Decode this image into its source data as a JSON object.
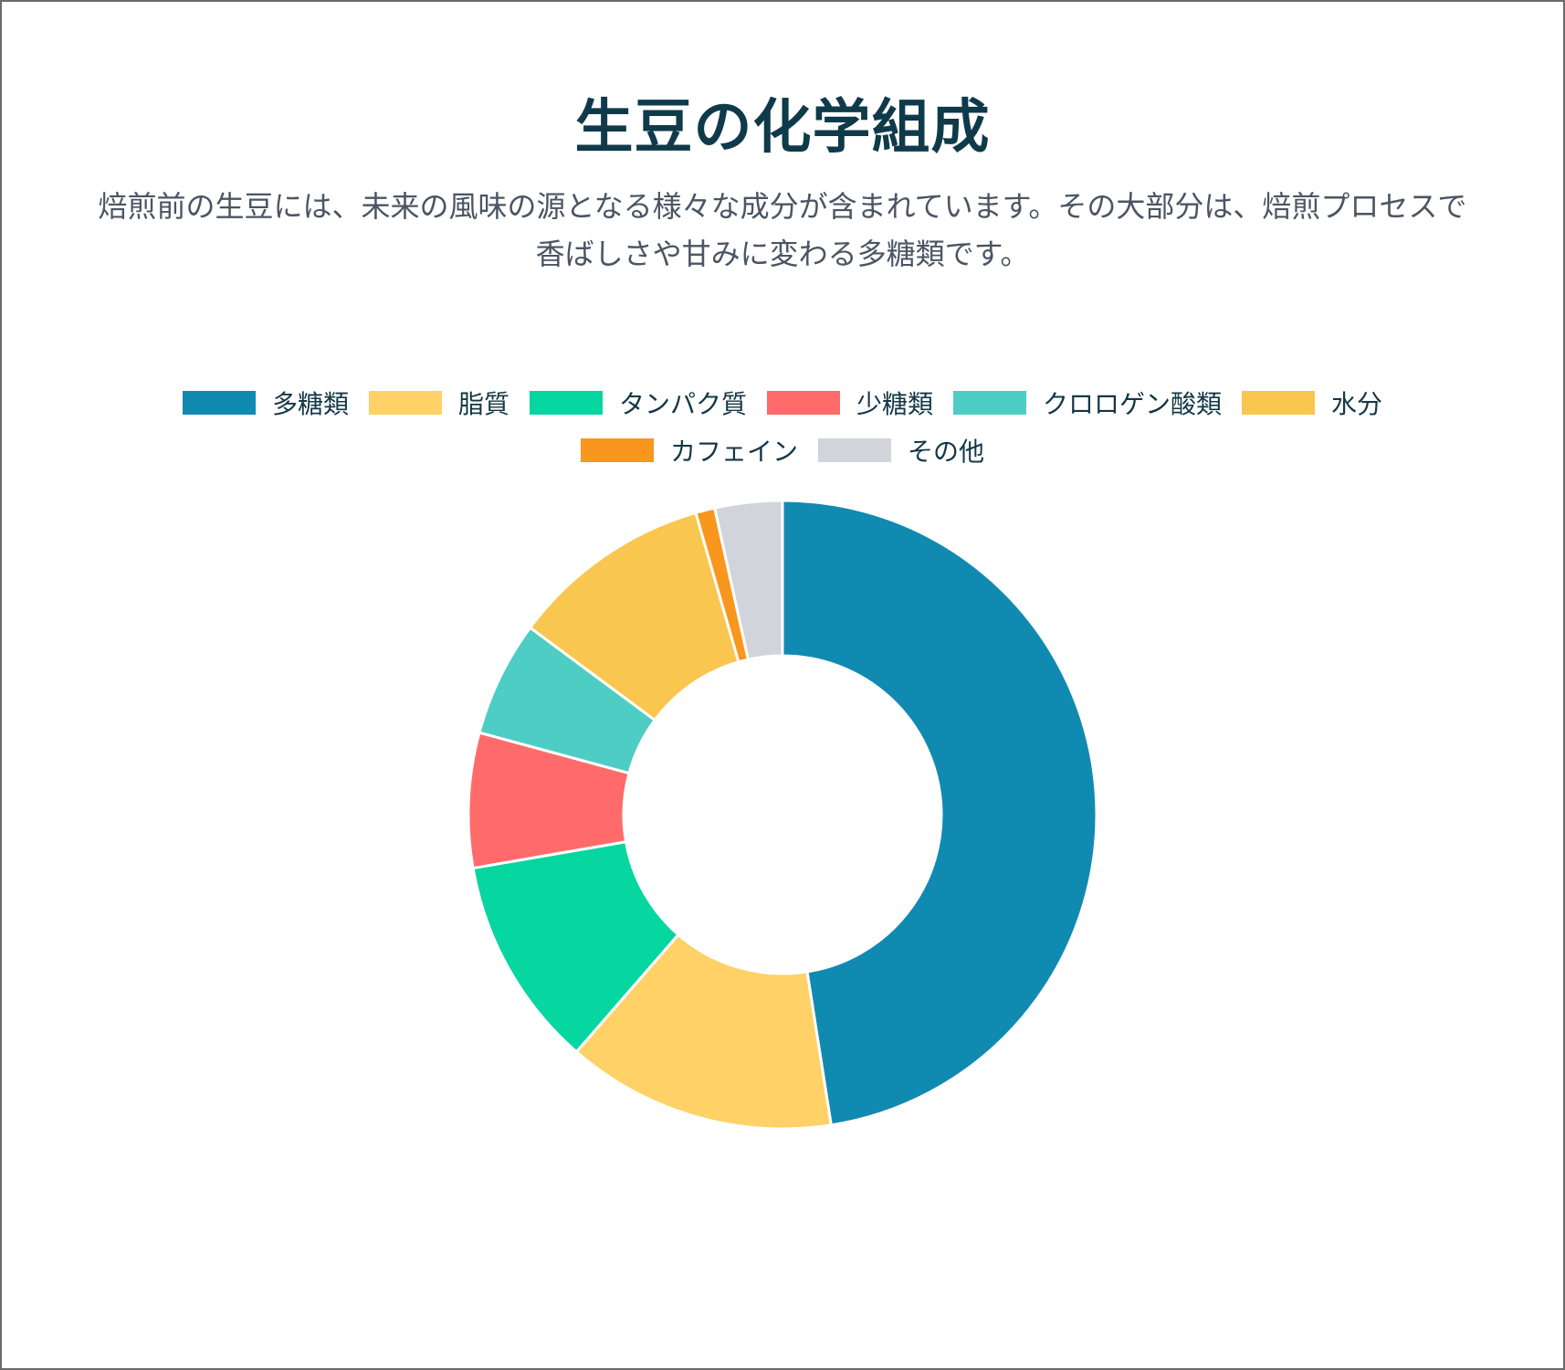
{
  "header": {
    "title": "生豆の化学組成",
    "subtitle": "焙煎前の生豆には、未来の風味の源となる様々な成分が含まれています。その大部分は、焙煎プロセスで香ばしさや甘みに変わる多糖類です。"
  },
  "chart_data": {
    "type": "doughnut",
    "title": "",
    "legend_position": "top",
    "unit": "",
    "categories": [
      "多糖類",
      "脂質",
      "タンパク質",
      "少糖類",
      "クロロゲン酸類",
      "水分",
      "カフェイン",
      "その他"
    ],
    "values": [
      48,
      14,
      11,
      7,
      6,
      10.5,
      1,
      3.5
    ],
    "colors": [
      "#118ab2",
      "#ffd166",
      "#06d6a0",
      "#ff6b6b",
      "#4ecdc4",
      "#f9c74f",
      "#f8961e",
      "#d1d5db"
    ]
  }
}
